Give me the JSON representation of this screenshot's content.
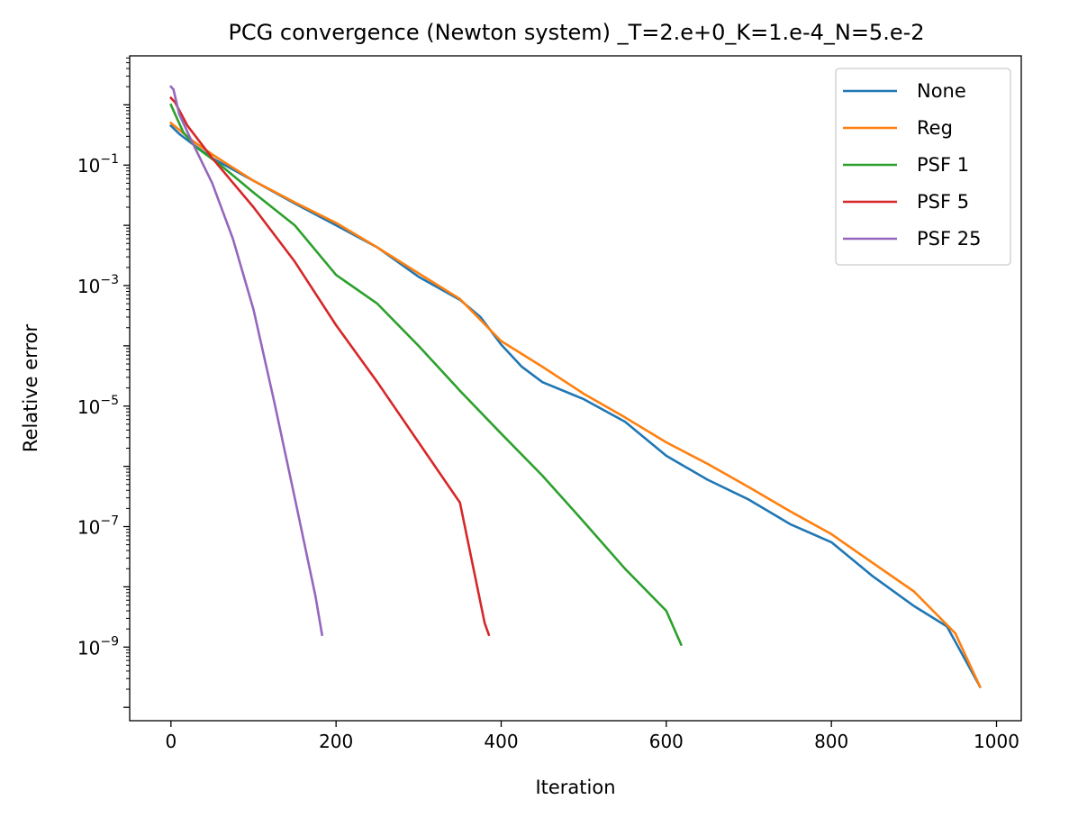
{
  "chart_data": {
    "type": "line",
    "title": "PCG convergence (Newton system) _T=2.e+0_K=1.e-4_N=5.e-2",
    "xlabel": "Iteration",
    "ylabel": "Relative error",
    "xlim": [
      -50,
      1030
    ],
    "ylim": [
      6e-11,
      6.5
    ],
    "yscale": "log",
    "x_ticks": [
      0,
      200,
      400,
      600,
      800,
      1000
    ],
    "y_ticks": [
      {
        "value": 0.1,
        "base": "10",
        "exp": "−1"
      },
      {
        "value": 0.001,
        "base": "10",
        "exp": "−3"
      },
      {
        "value": 1e-05,
        "base": "10",
        "exp": "−5"
      },
      {
        "value": 1e-07,
        "base": "10",
        "exp": "−7"
      },
      {
        "value": 1e-09,
        "base": "10",
        "exp": "−9"
      }
    ],
    "grid": false,
    "legend_position": "top-right",
    "series": [
      {
        "name": "None",
        "color": "#1f77b4",
        "points": [
          [
            0,
            0.45
          ],
          [
            10,
            0.33
          ],
          [
            25,
            0.23
          ],
          [
            50,
            0.13
          ],
          [
            100,
            0.055
          ],
          [
            150,
            0.023
          ],
          [
            200,
            0.01
          ],
          [
            250,
            0.0043
          ],
          [
            300,
            0.0014
          ],
          [
            350,
            0.00058
          ],
          [
            375,
            0.0003
          ],
          [
            400,
            0.000105
          ],
          [
            425,
            4.5e-05
          ],
          [
            450,
            2.5e-05
          ],
          [
            500,
            1.3e-05
          ],
          [
            550,
            5.5e-06
          ],
          [
            600,
            1.5e-06
          ],
          [
            650,
            6e-07
          ],
          [
            700,
            2.8e-07
          ],
          [
            750,
            1.1e-07
          ],
          [
            800,
            5.5e-08
          ],
          [
            850,
            1.5e-08
          ],
          [
            900,
            4.8e-09
          ],
          [
            940,
            2.2e-09
          ],
          [
            980,
            2.2e-10
          ]
        ]
      },
      {
        "name": "Reg",
        "color": "#ff7f0e",
        "points": [
          [
            0,
            0.5
          ],
          [
            25,
            0.26
          ],
          [
            50,
            0.15
          ],
          [
            100,
            0.055
          ],
          [
            150,
            0.024
          ],
          [
            200,
            0.011
          ],
          [
            250,
            0.0043
          ],
          [
            300,
            0.0016
          ],
          [
            350,
            0.0006
          ],
          [
            400,
            0.00012
          ],
          [
            450,
            4.5e-05
          ],
          [
            500,
            1.6e-05
          ],
          [
            550,
            6.5e-06
          ],
          [
            600,
            2.5e-06
          ],
          [
            650,
            1.1e-06
          ],
          [
            700,
            4.5e-07
          ],
          [
            750,
            1.8e-07
          ],
          [
            800,
            7.5e-08
          ],
          [
            850,
            2.5e-08
          ],
          [
            900,
            8.4e-09
          ],
          [
            950,
            1.7e-09
          ],
          [
            980,
            2.2e-10
          ]
        ]
      },
      {
        "name": "PSF 1",
        "color": "#2ca02c",
        "points": [
          [
            0,
            1.0
          ],
          [
            5,
            0.7
          ],
          [
            15,
            0.35
          ],
          [
            30,
            0.2
          ],
          [
            60,
            0.1
          ],
          [
            100,
            0.035
          ],
          [
            150,
            0.01
          ],
          [
            200,
            0.0015
          ],
          [
            250,
            0.0005
          ],
          [
            300,
            0.0001
          ],
          [
            350,
            1.8e-05
          ],
          [
            400,
            3.5e-06
          ],
          [
            450,
            7e-07
          ],
          [
            500,
            1.2e-07
          ],
          [
            550,
            2e-08
          ],
          [
            600,
            4e-09
          ],
          [
            618,
            1.1e-09
          ]
        ]
      },
      {
        "name": "PSF 5",
        "color": "#d62728",
        "points": [
          [
            0,
            1.3
          ],
          [
            5,
            1.1
          ],
          [
            20,
            0.45
          ],
          [
            50,
            0.13
          ],
          [
            100,
            0.02
          ],
          [
            150,
            0.0025
          ],
          [
            200,
            0.00022
          ],
          [
            250,
            2.5e-05
          ],
          [
            300,
            2.5e-06
          ],
          [
            350,
            2.5e-07
          ],
          [
            380,
            2.5e-09
          ],
          [
            385,
            1.6e-09
          ]
        ]
      },
      {
        "name": "PSF 25",
        "color": "#9467bd",
        "points": [
          [
            0,
            2.0
          ],
          [
            3,
            1.8
          ],
          [
            10,
            0.7
          ],
          [
            25,
            0.25
          ],
          [
            50,
            0.05
          ],
          [
            75,
            0.006
          ],
          [
            100,
            0.0004
          ],
          [
            125,
            1.2e-05
          ],
          [
            150,
            3e-07
          ],
          [
            175,
            7e-09
          ],
          [
            183,
            1.6e-09
          ]
        ]
      }
    ]
  }
}
